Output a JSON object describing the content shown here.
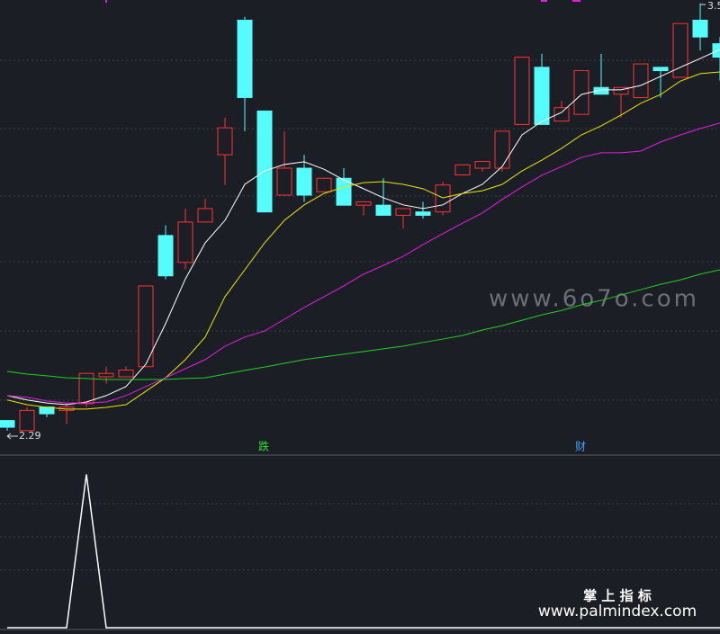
{
  "chart_data": [
    {
      "type": "candlestick",
      "ylim": [
        2.22,
        3.57
      ],
      "up_color": "#ff3232",
      "down_color": "#54fcfc",
      "open": [
        2.32,
        2.29,
        2.36,
        2.35,
        2.37,
        2.45,
        2.45,
        2.48,
        2.87,
        2.79,
        2.91,
        3.11,
        3.51,
        3.24,
        2.99,
        3.07,
        3.0,
        3.04,
        2.96,
        2.96,
        2.93,
        2.94,
        2.94,
        3.05,
        3.07,
        3.07,
        3.2,
        3.37,
        3.21,
        3.23,
        3.31,
        3.29,
        3.28,
        3.37,
        3.34,
        3.51,
        3.44
      ],
      "close": [
        2.3,
        2.35,
        2.34,
        2.36,
        2.46,
        2.46,
        2.47,
        2.72,
        2.75,
        2.91,
        2.95,
        3.19,
        3.28,
        2.94,
        3.07,
        2.99,
        3.04,
        2.96,
        2.97,
        2.93,
        2.95,
        2.93,
        3.02,
        3.08,
        3.09,
        3.18,
        3.4,
        3.2,
        3.25,
        3.36,
        3.29,
        3.31,
        3.38,
        3.36,
        3.5,
        3.46,
        3.4
      ],
      "high": [
        2.32,
        2.36,
        2.36,
        2.37,
        2.46,
        2.48,
        2.48,
        2.72,
        2.9,
        2.95,
        2.98,
        3.22,
        3.52,
        3.24,
        3.18,
        3.11,
        3.04,
        3.07,
        2.97,
        3.04,
        2.95,
        2.97,
        3.03,
        3.08,
        3.09,
        3.18,
        3.4,
        3.41,
        3.27,
        3.36,
        3.41,
        3.31,
        3.38,
        3.37,
        3.5,
        3.56,
        3.46
      ],
      "low": [
        2.29,
        2.29,
        2.33,
        2.31,
        2.36,
        2.43,
        2.45,
        2.48,
        2.74,
        2.77,
        2.91,
        3.02,
        3.18,
        2.94,
        2.99,
        2.97,
        3.0,
        2.96,
        2.93,
        2.93,
        2.89,
        2.92,
        2.93,
        3.05,
        3.06,
        3.06,
        3.2,
        3.2,
        3.21,
        3.23,
        3.29,
        3.22,
        3.28,
        3.28,
        3.34,
        3.42,
        3.33
      ],
      "series": [
        {
          "color": "#ffffff",
          "values": [
            2.394,
            2.381,
            2.372,
            2.367,
            2.375,
            2.394,
            2.421,
            2.487,
            2.608,
            2.741,
            2.848,
            2.915,
            3.022,
            3.062,
            3.081,
            3.089,
            3.067,
            3.035,
            3.009,
            2.982,
            2.961,
            2.95,
            2.961,
            2.995,
            3.022,
            3.075,
            3.169,
            3.209,
            3.236,
            3.289,
            3.303,
            3.303,
            3.316,
            3.343,
            3.37,
            3.396,
            3.423
          ]
        },
        {
          "color": "#e8e800",
          "values": [
            2.381,
            2.367,
            2.359,
            2.354,
            2.354,
            2.359,
            2.367,
            2.407,
            2.447,
            2.501,
            2.568,
            2.688,
            2.768,
            2.848,
            2.915,
            2.961,
            2.995,
            3.014,
            3.027,
            3.03,
            3.022,
            3.009,
            2.982,
            2.995,
            3.003,
            3.022,
            3.062,
            3.094,
            3.129,
            3.169,
            3.196,
            3.228,
            3.263,
            3.289,
            3.329,
            3.351,
            3.356
          ]
        },
        {
          "color": "#e020e0",
          "values": [
            2.394,
            2.389,
            2.378,
            2.372,
            2.372,
            2.375,
            2.394,
            2.421,
            2.447,
            2.474,
            2.501,
            2.541,
            2.568,
            2.586,
            2.621,
            2.656,
            2.688,
            2.72,
            2.755,
            2.781,
            2.808,
            2.843,
            2.875,
            2.907,
            2.937,
            2.977,
            3.014,
            3.049,
            3.075,
            3.102,
            3.116,
            3.116,
            3.121,
            3.148,
            3.169,
            3.188,
            3.204
          ]
        },
        {
          "color": "#20d020",
          "values": [
            2.466,
            2.458,
            2.453,
            2.447,
            2.445,
            2.442,
            2.442,
            2.442,
            2.442,
            2.445,
            2.447,
            2.458,
            2.469,
            2.479,
            2.49,
            2.501,
            2.509,
            2.517,
            2.525,
            2.533,
            2.541,
            2.552,
            2.562,
            2.573,
            2.589,
            2.602,
            2.618,
            2.634,
            2.647,
            2.664,
            2.677,
            2.693,
            2.709,
            2.725,
            2.738,
            2.755,
            2.768
          ]
        }
      ],
      "signals": [
        {
          "text": "跌",
          "color": "#30e030"
        },
        {
          "text": "财",
          "color": "#40a0ff"
        }
      ],
      "watermarks": [
        "www.6o7o.com",
        "掌 上 指 标",
        "www.palmindex.com"
      ]
    },
    {
      "type": "line",
      "ylim": [
        0,
        1.12
      ],
      "color": "#ffffff",
      "values": [
        0,
        0,
        0,
        0,
        1,
        0,
        0,
        0,
        0,
        0,
        0,
        0,
        0,
        0,
        0,
        0,
        0,
        0,
        0,
        0,
        0,
        0,
        0,
        0,
        0,
        0,
        0,
        0,
        0,
        0,
        0,
        0,
        0,
        0,
        0,
        0,
        0
      ]
    }
  ]
}
